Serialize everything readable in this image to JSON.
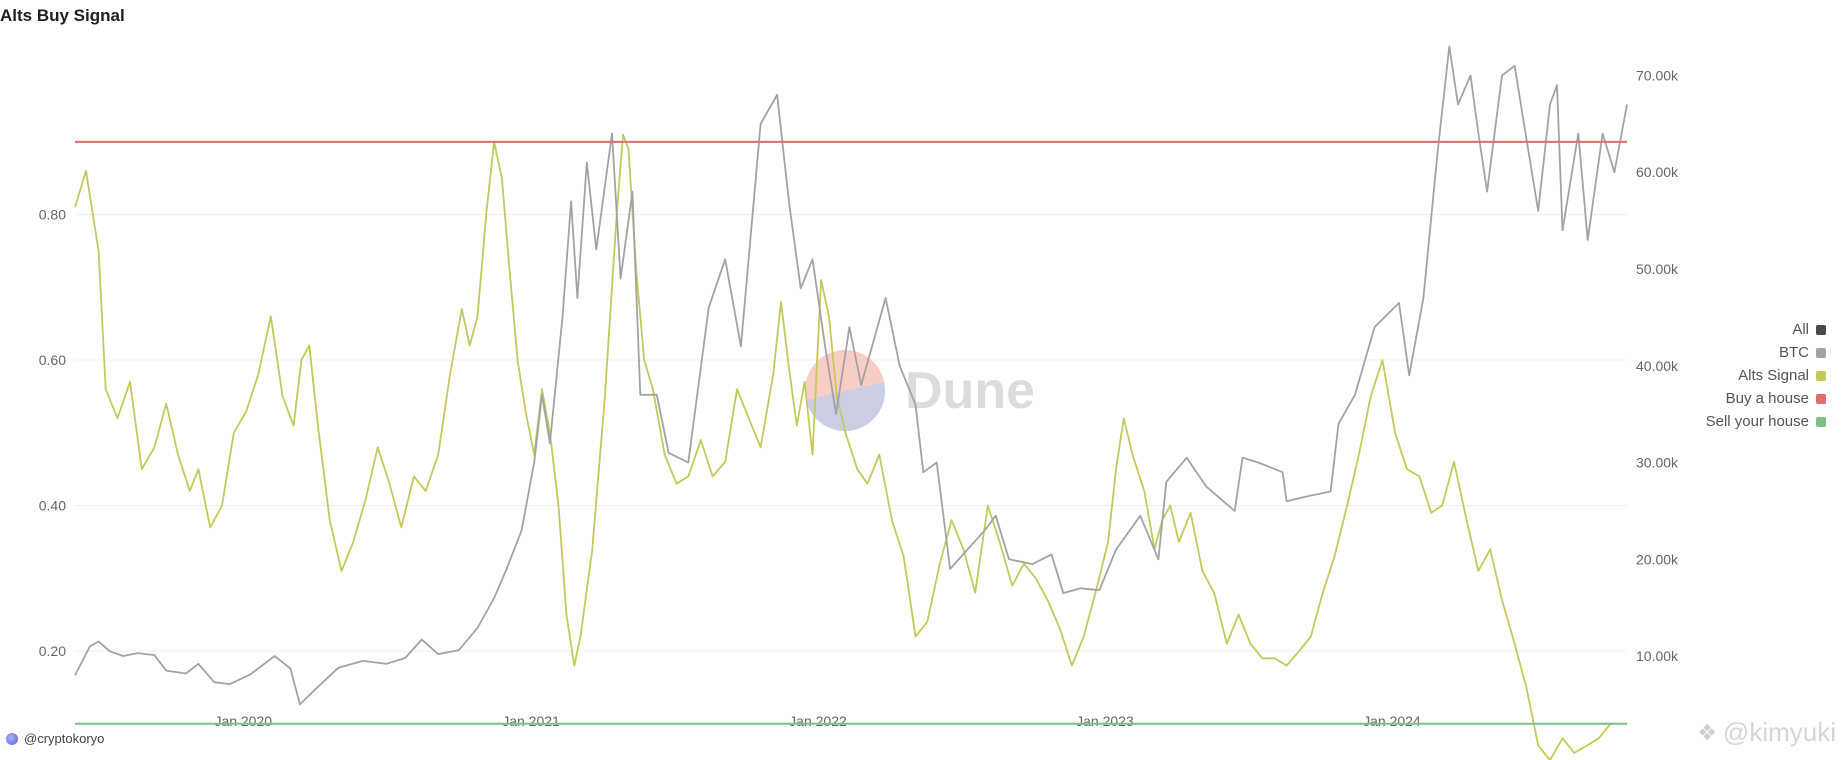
{
  "page": {
    "title": "Alts Buy Signal",
    "author": "@cryptokoryo",
    "credit": "@kimyuki"
  },
  "watermark": "Dune",
  "legend": [
    {
      "label": "All",
      "color": "#4a4a4a"
    },
    {
      "label": "BTC",
      "color": "#a3a3a3"
    },
    {
      "label": "Alts Signal",
      "color": "#c3c95a"
    },
    {
      "label": "Buy a house",
      "color": "#e06c6c"
    },
    {
      "label": "Sell your house",
      "color": "#7cc08e"
    }
  ],
  "chart_data": {
    "type": "line",
    "title": "Alts Buy Signal",
    "x_ticks": [
      {
        "date": "2020-01-01",
        "label": "Jan 2020"
      },
      {
        "date": "2021-01-01",
        "label": "Jan 2021"
      },
      {
        "date": "2022-01-01",
        "label": "Jan 2022"
      },
      {
        "date": "2023-01-01",
        "label": "Jan 2023"
      },
      {
        "date": "2024-01-01",
        "label": "Jan 2024"
      }
    ],
    "xlim": [
      "2019-06-01",
      "2024-10-26"
    ],
    "y_left": {
      "ylim": [
        0.0,
        0.95
      ],
      "ticks": [
        "0.20",
        "0.40",
        "0.60",
        "0.80"
      ],
      "tick_values": [
        0.2,
        0.4,
        0.6,
        0.8
      ]
    },
    "y_right": {
      "ylim": [
        0,
        80000
      ],
      "ticks": [
        "10.00k",
        "20.00k",
        "30.00k",
        "40.00k",
        "50.00k",
        "60.00k",
        "70.00k"
      ],
      "tick_values": [
        10000,
        20000,
        30000,
        40000,
        50000,
        60000,
        70000
      ]
    },
    "grid": true,
    "legend_position": "right",
    "series": [
      {
        "name": "Alts Signal",
        "axis": "left",
        "color": "#c3c95a",
        "points": [
          [
            "2019-06-01",
            0.81
          ],
          [
            "2019-06-15",
            0.86
          ],
          [
            "2019-07-01",
            0.75
          ],
          [
            "2019-07-10",
            0.56
          ],
          [
            "2019-07-25",
            0.52
          ],
          [
            "2019-08-10",
            0.57
          ],
          [
            "2019-08-25",
            0.45
          ],
          [
            "2019-09-10",
            0.48
          ],
          [
            "2019-09-25",
            0.54
          ],
          [
            "2019-10-10",
            0.47
          ],
          [
            "2019-10-25",
            0.42
          ],
          [
            "2019-11-05",
            0.45
          ],
          [
            "2019-11-20",
            0.37
          ],
          [
            "2019-12-05",
            0.4
          ],
          [
            "2019-12-20",
            0.5
          ],
          [
            "2020-01-05",
            0.53
          ],
          [
            "2020-01-20",
            0.58
          ],
          [
            "2020-02-05",
            0.66
          ],
          [
            "2020-02-20",
            0.55
          ],
          [
            "2020-03-05",
            0.51
          ],
          [
            "2020-03-15",
            0.6
          ],
          [
            "2020-03-25",
            0.62
          ],
          [
            "2020-04-05",
            0.51
          ],
          [
            "2020-04-20",
            0.38
          ],
          [
            "2020-05-05",
            0.31
          ],
          [
            "2020-05-20",
            0.35
          ],
          [
            "2020-06-05",
            0.41
          ],
          [
            "2020-06-20",
            0.48
          ],
          [
            "2020-07-05",
            0.43
          ],
          [
            "2020-07-20",
            0.37
          ],
          [
            "2020-08-05",
            0.44
          ],
          [
            "2020-08-20",
            0.42
          ],
          [
            "2020-09-05",
            0.47
          ],
          [
            "2020-09-20",
            0.58
          ],
          [
            "2020-10-05",
            0.67
          ],
          [
            "2020-10-15",
            0.62
          ],
          [
            "2020-10-25",
            0.66
          ],
          [
            "2020-11-05",
            0.8
          ],
          [
            "2020-11-15",
            0.9
          ],
          [
            "2020-11-25",
            0.85
          ],
          [
            "2020-12-05",
            0.72
          ],
          [
            "2020-12-15",
            0.6
          ],
          [
            "2020-12-25",
            0.53
          ],
          [
            "2021-01-05",
            0.47
          ],
          [
            "2021-01-15",
            0.56
          ],
          [
            "2021-01-25",
            0.5
          ],
          [
            "2021-02-05",
            0.4
          ],
          [
            "2021-02-15",
            0.25
          ],
          [
            "2021-02-25",
            0.18
          ],
          [
            "2021-03-05",
            0.22
          ],
          [
            "2021-03-20",
            0.34
          ],
          [
            "2021-04-05",
            0.55
          ],
          [
            "2021-04-20",
            0.8
          ],
          [
            "2021-04-28",
            0.91
          ],
          [
            "2021-05-05",
            0.89
          ],
          [
            "2021-05-15",
            0.72
          ],
          [
            "2021-05-25",
            0.6
          ],
          [
            "2021-06-05",
            0.56
          ],
          [
            "2021-06-20",
            0.47
          ],
          [
            "2021-07-05",
            0.43
          ],
          [
            "2021-07-20",
            0.44
          ],
          [
            "2021-08-05",
            0.49
          ],
          [
            "2021-08-20",
            0.44
          ],
          [
            "2021-09-05",
            0.46
          ],
          [
            "2021-09-20",
            0.56
          ],
          [
            "2021-10-05",
            0.52
          ],
          [
            "2021-10-20",
            0.48
          ],
          [
            "2021-11-05",
            0.58
          ],
          [
            "2021-11-15",
            0.68
          ],
          [
            "2021-11-25",
            0.59
          ],
          [
            "2021-12-05",
            0.51
          ],
          [
            "2021-12-15",
            0.57
          ],
          [
            "2021-12-25",
            0.47
          ],
          [
            "2022-01-05",
            0.71
          ],
          [
            "2022-01-15",
            0.66
          ],
          [
            "2022-01-25",
            0.55
          ],
          [
            "2022-02-05",
            0.5
          ],
          [
            "2022-02-20",
            0.45
          ],
          [
            "2022-03-05",
            0.43
          ],
          [
            "2022-03-20",
            0.47
          ],
          [
            "2022-04-05",
            0.38
          ],
          [
            "2022-04-20",
            0.33
          ],
          [
            "2022-05-05",
            0.22
          ],
          [
            "2022-05-20",
            0.24
          ],
          [
            "2022-06-05",
            0.32
          ],
          [
            "2022-06-20",
            0.38
          ],
          [
            "2022-07-05",
            0.34
          ],
          [
            "2022-07-20",
            0.28
          ],
          [
            "2022-08-05",
            0.4
          ],
          [
            "2022-08-20",
            0.35
          ],
          [
            "2022-09-05",
            0.29
          ],
          [
            "2022-09-20",
            0.32
          ],
          [
            "2022-10-05",
            0.3
          ],
          [
            "2022-10-20",
            0.27
          ],
          [
            "2022-11-05",
            0.23
          ],
          [
            "2022-11-20",
            0.18
          ],
          [
            "2022-12-05",
            0.22
          ],
          [
            "2022-12-20",
            0.28
          ],
          [
            "2023-01-05",
            0.35
          ],
          [
            "2023-01-15",
            0.45
          ],
          [
            "2023-01-25",
            0.52
          ],
          [
            "2023-02-05",
            0.47
          ],
          [
            "2023-02-20",
            0.42
          ],
          [
            "2023-03-05",
            0.34
          ],
          [
            "2023-03-15",
            0.38
          ],
          [
            "2023-03-25",
            0.4
          ],
          [
            "2023-04-05",
            0.35
          ],
          [
            "2023-04-20",
            0.39
          ],
          [
            "2023-05-05",
            0.31
          ],
          [
            "2023-05-20",
            0.28
          ],
          [
            "2023-06-05",
            0.21
          ],
          [
            "2023-06-20",
            0.25
          ],
          [
            "2023-07-05",
            0.21
          ],
          [
            "2023-07-20",
            0.19
          ],
          [
            "2023-08-05",
            0.19
          ],
          [
            "2023-08-20",
            0.18
          ],
          [
            "2023-09-05",
            0.2
          ],
          [
            "2023-09-20",
            0.22
          ],
          [
            "2023-10-05",
            0.28
          ],
          [
            "2023-10-20",
            0.33
          ],
          [
            "2023-11-05",
            0.4
          ],
          [
            "2023-11-20",
            0.47
          ],
          [
            "2023-12-05",
            0.55
          ],
          [
            "2023-12-20",
            0.6
          ],
          [
            "2024-01-05",
            0.5
          ],
          [
            "2024-01-20",
            0.45
          ],
          [
            "2024-02-05",
            0.44
          ],
          [
            "2024-02-20",
            0.39
          ],
          [
            "2024-03-05",
            0.4
          ],
          [
            "2024-03-20",
            0.46
          ],
          [
            "2024-04-05",
            0.38
          ],
          [
            "2024-04-20",
            0.31
          ],
          [
            "2024-05-05",
            0.34
          ],
          [
            "2024-05-20",
            0.27
          ],
          [
            "2024-06-05",
            0.21
          ],
          [
            "2024-06-20",
            0.15
          ],
          [
            "2024-07-05",
            0.07
          ],
          [
            "2024-07-20",
            0.05
          ],
          [
            "2024-08-05",
            0.08
          ],
          [
            "2024-08-20",
            0.06
          ],
          [
            "2024-09-05",
            0.07
          ],
          [
            "2024-09-20",
            0.08
          ],
          [
            "2024-10-05",
            0.1
          ]
        ]
      },
      {
        "name": "BTC",
        "axis": "right",
        "color": "#a3a3a3",
        "points": [
          [
            "2019-06-01",
            8000
          ],
          [
            "2019-06-20",
            11000
          ],
          [
            "2019-07-01",
            11500
          ],
          [
            "2019-07-15",
            10500
          ],
          [
            "2019-08-01",
            10000
          ],
          [
            "2019-08-20",
            10300
          ],
          [
            "2019-09-10",
            10100
          ],
          [
            "2019-09-25",
            8500
          ],
          [
            "2019-10-20",
            8200
          ],
          [
            "2019-11-05",
            9200
          ],
          [
            "2019-11-25",
            7300
          ],
          [
            "2019-12-15",
            7100
          ],
          [
            "2020-01-10",
            8100
          ],
          [
            "2020-02-10",
            10000
          ],
          [
            "2020-03-01",
            8700
          ],
          [
            "2020-03-13",
            5000
          ],
          [
            "2020-04-01",
            6500
          ],
          [
            "2020-05-01",
            8800
          ],
          [
            "2020-06-01",
            9500
          ],
          [
            "2020-07-01",
            9200
          ],
          [
            "2020-07-25",
            9800
          ],
          [
            "2020-08-15",
            11700
          ],
          [
            "2020-09-05",
            10200
          ],
          [
            "2020-10-01",
            10600
          ],
          [
            "2020-10-25",
            12900
          ],
          [
            "2020-11-15",
            16000
          ],
          [
            "2020-12-01",
            19000
          ],
          [
            "2020-12-20",
            23000
          ],
          [
            "2021-01-05",
            30000
          ],
          [
            "2021-01-15",
            37000
          ],
          [
            "2021-01-25",
            32000
          ],
          [
            "2021-02-10",
            45000
          ],
          [
            "2021-02-21",
            57000
          ],
          [
            "2021-03-01",
            47000
          ],
          [
            "2021-03-13",
            61000
          ],
          [
            "2021-03-25",
            52000
          ],
          [
            "2021-04-14",
            64000
          ],
          [
            "2021-04-25",
            49000
          ],
          [
            "2021-05-10",
            58000
          ],
          [
            "2021-05-20",
            37000
          ],
          [
            "2021-06-10",
            37000
          ],
          [
            "2021-06-25",
            31000
          ],
          [
            "2021-07-20",
            30000
          ],
          [
            "2021-08-15",
            46000
          ],
          [
            "2021-09-05",
            51000
          ],
          [
            "2021-09-25",
            42000
          ],
          [
            "2021-10-20",
            65000
          ],
          [
            "2021-11-10",
            68000
          ],
          [
            "2021-11-25",
            57000
          ],
          [
            "2021-12-10",
            48000
          ],
          [
            "2021-12-25",
            51000
          ],
          [
            "2022-01-10",
            42000
          ],
          [
            "2022-01-24",
            35000
          ],
          [
            "2022-02-10",
            44000
          ],
          [
            "2022-02-25",
            38000
          ],
          [
            "2022-03-28",
            47000
          ],
          [
            "2022-04-15",
            40000
          ],
          [
            "2022-05-05",
            36000
          ],
          [
            "2022-05-15",
            29000
          ],
          [
            "2022-06-01",
            30000
          ],
          [
            "2022-06-18",
            19000
          ],
          [
            "2022-07-10",
            21000
          ],
          [
            "2022-08-01",
            23000
          ],
          [
            "2022-08-15",
            24500
          ],
          [
            "2022-09-01",
            20000
          ],
          [
            "2022-10-01",
            19500
          ],
          [
            "2022-10-25",
            20500
          ],
          [
            "2022-11-09",
            16500
          ],
          [
            "2022-12-01",
            17000
          ],
          [
            "2022-12-25",
            16800
          ],
          [
            "2023-01-15",
            21000
          ],
          [
            "2023-02-15",
            24500
          ],
          [
            "2023-03-10",
            20000
          ],
          [
            "2023-03-20",
            28000
          ],
          [
            "2023-04-15",
            30500
          ],
          [
            "2023-05-10",
            27500
          ],
          [
            "2023-06-15",
            25000
          ],
          [
            "2023-06-25",
            30500
          ],
          [
            "2023-07-15",
            30000
          ],
          [
            "2023-08-15",
            29000
          ],
          [
            "2023-08-20",
            26000
          ],
          [
            "2023-09-15",
            26500
          ],
          [
            "2023-10-15",
            27000
          ],
          [
            "2023-10-25",
            34000
          ],
          [
            "2023-11-15",
            37000
          ],
          [
            "2023-12-10",
            44000
          ],
          [
            "2024-01-10",
            46500
          ],
          [
            "2024-01-23",
            39000
          ],
          [
            "2024-02-10",
            47000
          ],
          [
            "2024-02-28",
            62000
          ],
          [
            "2024-03-14",
            73000
          ],
          [
            "2024-03-25",
            67000
          ],
          [
            "2024-04-10",
            70000
          ],
          [
            "2024-04-20",
            64000
          ],
          [
            "2024-05-01",
            58000
          ],
          [
            "2024-05-20",
            70000
          ],
          [
            "2024-06-05",
            71000
          ],
          [
            "2024-06-25",
            61000
          ],
          [
            "2024-07-05",
            56000
          ],
          [
            "2024-07-20",
            67000
          ],
          [
            "2024-07-29",
            69000
          ],
          [
            "2024-08-05",
            54000
          ],
          [
            "2024-08-25",
            64000
          ],
          [
            "2024-09-06",
            53000
          ],
          [
            "2024-09-25",
            64000
          ],
          [
            "2024-10-10",
            60000
          ],
          [
            "2024-10-26",
            67000
          ]
        ]
      },
      {
        "name": "Buy a house",
        "axis": "left",
        "color": "#e06c6c",
        "constant": 0.9
      },
      {
        "name": "Sell your house",
        "axis": "left",
        "color": "#7cc08e",
        "constant": 0.1
      }
    ]
  }
}
